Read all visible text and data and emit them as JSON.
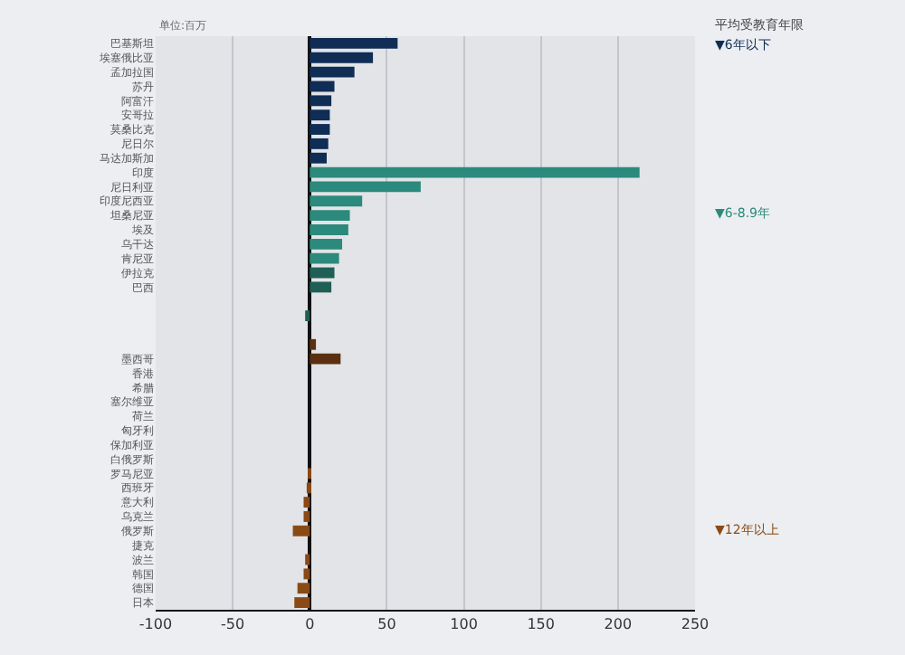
{
  "chart_data": {
    "type": "bar",
    "orientation": "horizontal",
    "categories": [
      "巴基斯坦",
      "埃塞俄比亚",
      "孟加拉国",
      "苏丹",
      "阿富汗",
      "安哥拉",
      "莫桑比克",
      "尼日尔",
      "马达加斯加",
      "印度",
      "尼日利亚",
      "印度尼西亚",
      "坦桑尼亚",
      "埃及",
      "乌干达",
      "肯尼亚",
      "伊拉克",
      "巴西",
      null,
      null,
      null,
      null,
      "墨西哥",
      "香港",
      "希腊",
      "塞尔维亚",
      "荷兰",
      "匈牙利",
      "保加利亚",
      "白俄罗斯",
      "罗马尼亚",
      "西班牙",
      "意大利",
      "乌克兰",
      "俄罗斯",
      "捷克",
      "波兰",
      "韩国",
      "德国",
      "日本"
    ],
    "values": [
      57,
      41,
      29,
      16,
      14,
      13,
      13,
      12,
      11,
      214,
      72,
      34,
      26,
      25,
      21,
      19,
      16,
      14,
      null,
      -3,
      null,
      4,
      20,
      0,
      0,
      0,
      0,
      0,
      0,
      0,
      -1,
      -2,
      -4,
      -4,
      -11,
      0,
      -3,
      -4,
      -8,
      -10
    ],
    "colors": [
      "#0f2d55",
      "#0f2d55",
      "#0f2d55",
      "#0f2d55",
      "#0f2d55",
      "#0f2d55",
      "#0f2d55",
      "#0f2d55",
      "#0f2d55",
      "#2b8a7b",
      "#2b8a7b",
      "#2b8a7b",
      "#2b8a7b",
      "#2b8a7b",
      "#2b8a7b",
      "#2b8a7b",
      "#1f5f55",
      "#1f5f55",
      "#1f5f55",
      "#1f5f55",
      "#1f5f55",
      "#5a3010",
      "#5a3010",
      "#8a4a15",
      "#8a4a15",
      "#8a4a15",
      "#8a4a15",
      "#8a4a15",
      "#8a4a15",
      "#8a4a15",
      "#8a4a15",
      "#8a4a15",
      "#8a4a15",
      "#8a4a15",
      "#8a4a15",
      "#8a4a15",
      "#8a4a15",
      "#8a4a15",
      "#8a4a15",
      "#8a4a15"
    ],
    "xlim": [
      -100,
      250
    ],
    "xticks": [
      -100,
      -50,
      0,
      50,
      100,
      150,
      200,
      250
    ],
    "grid": "x",
    "annotations": [
      "单位:百万",
      "平均受教育年限",
      "▼6年以下",
      "▼6-8.9年",
      "▼12年以上"
    ]
  }
}
